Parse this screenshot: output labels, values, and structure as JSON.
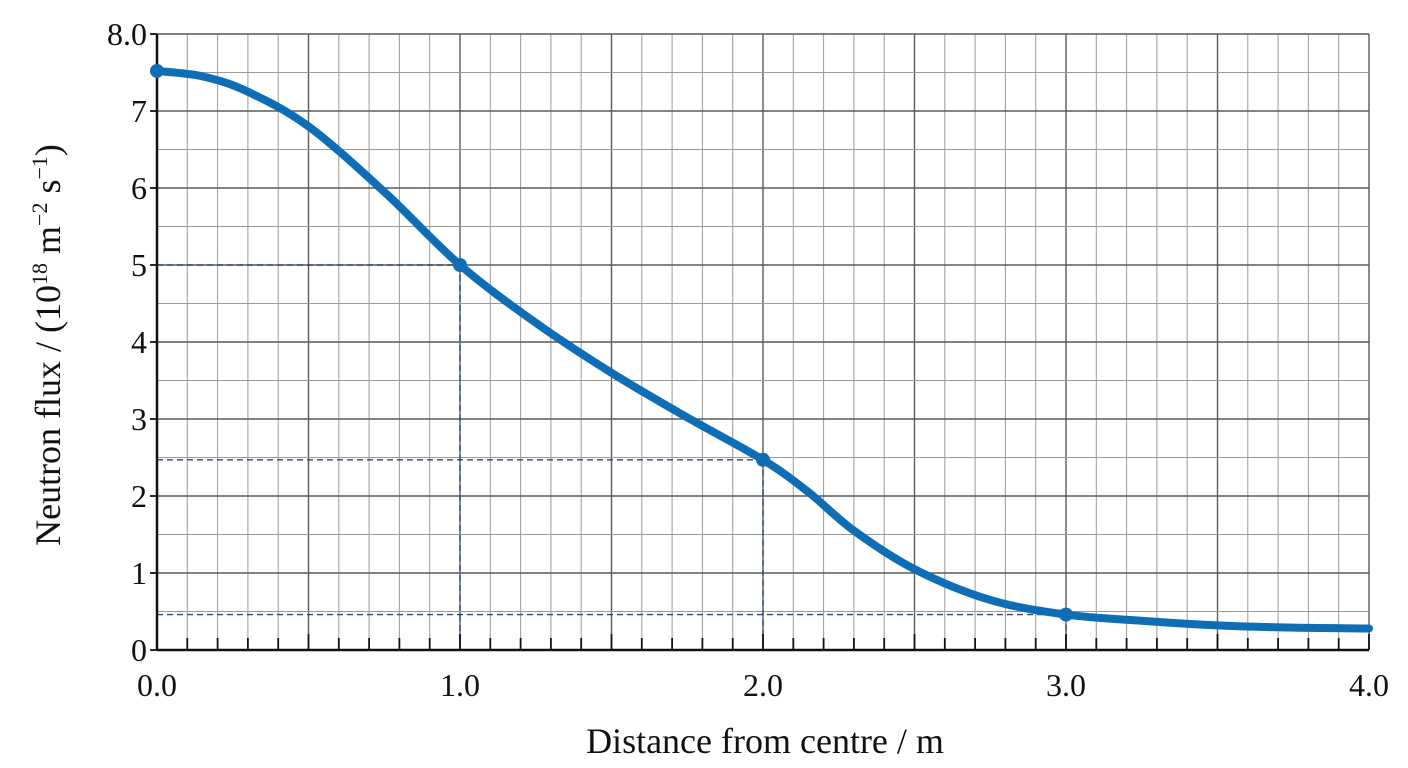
{
  "chart_data": {
    "type": "line",
    "xlabel": "Distance from centre / m",
    "ylabel": "Neutron flux / (10",
    "ylabel_parts": [
      "Neutron flux / (10",
      "18",
      " m",
      "−2",
      " s",
      "−1",
      ")"
    ],
    "xlim": [
      0,
      4
    ],
    "ylim": [
      0,
      8
    ],
    "x_ticks": [
      {
        "value": 0,
        "label": "0.0"
      },
      {
        "value": 1,
        "label": "1.0"
      },
      {
        "value": 2,
        "label": "2.0"
      },
      {
        "value": 3,
        "label": "3.0"
      },
      {
        "value": 4,
        "label": "4.0"
      }
    ],
    "y_ticks": [
      {
        "value": 0,
        "label": "0"
      },
      {
        "value": 1,
        "label": "1"
      },
      {
        "value": 2,
        "label": "2"
      },
      {
        "value": 3,
        "label": "3"
      },
      {
        "value": 4,
        "label": "4"
      },
      {
        "value": 5,
        "label": "5"
      },
      {
        "value": 6,
        "label": "6"
      },
      {
        "value": 7,
        "label": "7"
      },
      {
        "value": 8,
        "label": "8.0"
      }
    ],
    "grid": true,
    "series": [
      {
        "color": "#0f6db5",
        "x": [
          0.0,
          0.15,
          0.3,
          0.5,
          0.75,
          1.0,
          1.25,
          1.5,
          1.75,
          2.0,
          2.15,
          2.3,
          2.5,
          2.75,
          3.0,
          3.25,
          3.5,
          3.75,
          4.0
        ],
        "y": [
          7.52,
          7.45,
          7.25,
          6.8,
          5.95,
          5.0,
          4.25,
          3.6,
          3.02,
          2.47,
          2.05,
          1.55,
          1.05,
          0.65,
          0.46,
          0.38,
          0.32,
          0.29,
          0.28
        ]
      }
    ],
    "markers": [
      {
        "x": 0.0,
        "y": 7.52
      },
      {
        "x": 1.0,
        "y": 5.0
      },
      {
        "x": 2.0,
        "y": 2.47
      },
      {
        "x": 3.0,
        "y": 0.46
      }
    ],
    "guides": [
      {
        "x": 1.0,
        "y": 5.0
      },
      {
        "x": 2.0,
        "y": 2.47
      },
      {
        "x": 3.0,
        "y": 0.46
      }
    ]
  }
}
